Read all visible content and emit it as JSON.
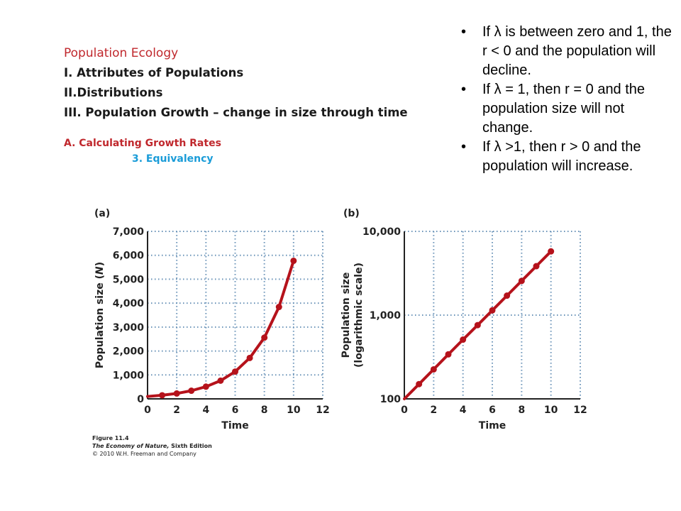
{
  "outline": {
    "title": "Population Ecology",
    "item1": "I. Attributes of Populations",
    "item2": "II.Distributions",
    "item3": "III. Population Growth – change in size through time",
    "sub_a": "A. Calculating  Growth Rates",
    "sub_3": "3. Equivalency"
  },
  "bullets": [
    "If λ is between zero and 1, the r < 0 and the population will decline.",
    "If λ = 1, then r = 0 and the population size will not change.",
    "If λ >1, then r > 0 and the population will increase."
  ],
  "bullet_glyph": "•",
  "caption": {
    "figure": "Figure 11.4",
    "book_title": "The Economy of Nature,",
    "edition": " Sixth Edition",
    "copyright": "© 2010 W.H. Freeman and Company"
  },
  "colors": {
    "series": "#b5121b",
    "grid": "#6a93b8",
    "title_red": "#c0282d",
    "subtitle_blue": "#1a9cd8"
  },
  "chart_data": [
    {
      "type": "line",
      "panel_label": "(a)",
      "xlabel": "Time",
      "ylabel": "Population size (N)",
      "xlim": [
        0,
        12
      ],
      "ylim": [
        0,
        7000
      ],
      "x_ticks": [
        0,
        2,
        4,
        6,
        8,
        10,
        12
      ],
      "y_ticks": [
        0,
        1000,
        2000,
        3000,
        4000,
        5000,
        6000,
        7000
      ],
      "y_tick_labels": [
        "0",
        "1,000",
        "2,000",
        "3,000",
        "4,000",
        "5,000",
        "6,000",
        "7,000"
      ],
      "y_scale": "linear",
      "grid": "dotted",
      "x": [
        0,
        1,
        2,
        3,
        4,
        5,
        6,
        7,
        8,
        9,
        10
      ],
      "y": [
        100,
        150,
        225,
        340,
        510,
        760,
        1140,
        1710,
        2560,
        3840,
        5770
      ]
    },
    {
      "type": "line",
      "panel_label": "(b)",
      "xlabel": "Time",
      "ylabel": "Population size (logarithmic scale)",
      "xlim": [
        0,
        12
      ],
      "ylim": [
        100,
        10000
      ],
      "x_ticks": [
        0,
        2,
        4,
        6,
        8,
        10,
        12
      ],
      "y_ticks": [
        100,
        1000,
        10000
      ],
      "y_tick_labels": [
        "100",
        "1,000",
        "10,000"
      ],
      "y_scale": "log",
      "grid": "dotted",
      "x": [
        0,
        1,
        2,
        3,
        4,
        5,
        6,
        7,
        8,
        9,
        10
      ],
      "y": [
        100,
        150,
        225,
        340,
        510,
        760,
        1140,
        1710,
        2560,
        3840,
        5770
      ]
    }
  ]
}
